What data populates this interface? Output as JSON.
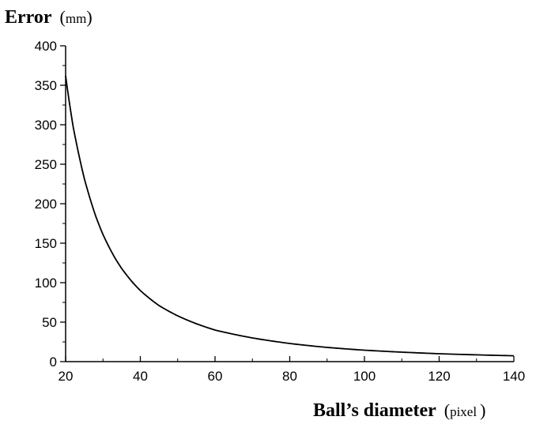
{
  "chart_data": {
    "type": "line",
    "title": "",
    "ylabel": {
      "main": "Error",
      "unit": "mm"
    },
    "xlabel": {
      "main": "Ball’s diameter",
      "unit": "pixel"
    },
    "xlim": [
      20,
      140
    ],
    "ylim": [
      0,
      400
    ],
    "grid": false,
    "x_ticks": [
      "20",
      "40",
      "60",
      "80",
      "100",
      "120",
      "140"
    ],
    "y_ticks": [
      "0",
      "50",
      "100",
      "150",
      "200",
      "250",
      "300",
      "350",
      "400"
    ],
    "series": [
      {
        "x": [
          20,
          22,
          25,
          28,
          30,
          33,
          35,
          38,
          40,
          45,
          50,
          55,
          60,
          70,
          80,
          90,
          100,
          110,
          120,
          130,
          140
        ],
        "y": [
          362,
          298,
          232,
          185,
          161,
          133,
          118,
          100,
          90,
          71,
          58,
          48,
          40,
          30,
          23,
          18,
          14.5,
          12,
          10,
          8.6,
          7.4
        ]
      }
    ]
  }
}
